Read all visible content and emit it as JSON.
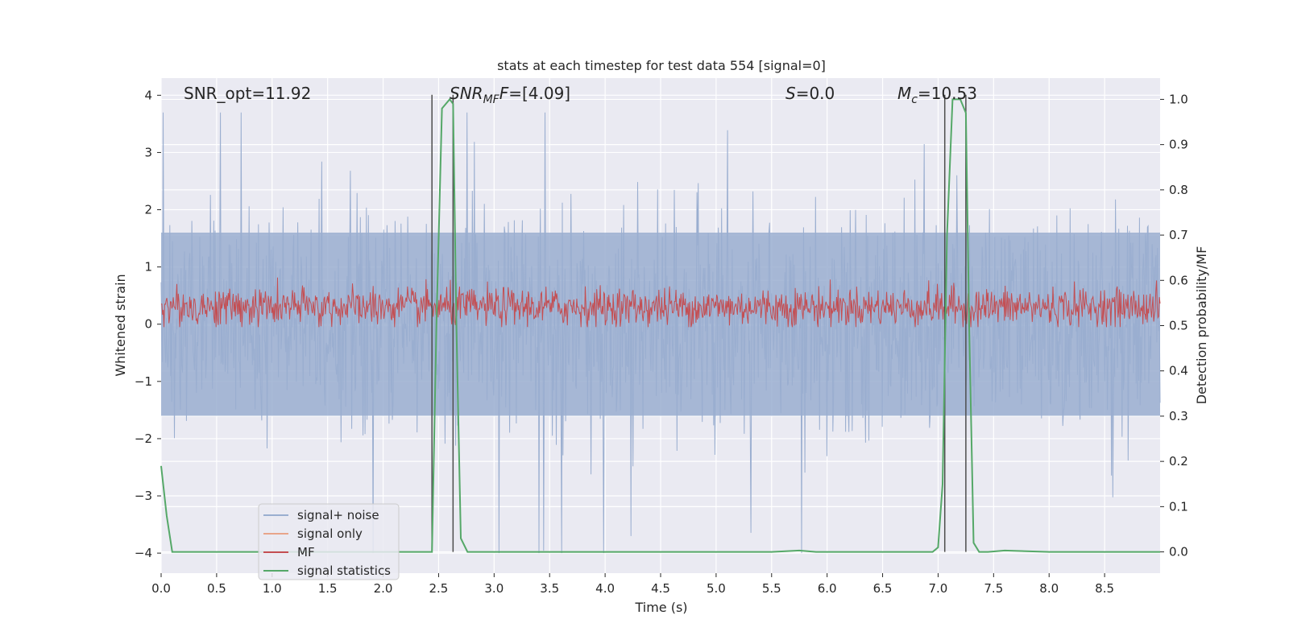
{
  "chart_data": {
    "type": "line",
    "title": "stats at each timestep for test data 554 [signal=0]",
    "xlabel": "Time (s)",
    "ylabel": "Whitened strain",
    "ylabel_right": "Detection probability/MF",
    "xlim": [
      0.0,
      9.0
    ],
    "ylim": [
      -4.35,
      4.3
    ],
    "ylim_right": [
      -0.047,
      1.047
    ],
    "xticks": [
      "0.0",
      "0.5",
      "1.0",
      "1.5",
      "2.0",
      "2.5",
      "3.0",
      "3.5",
      "4.0",
      "4.5",
      "5.0",
      "5.5",
      "6.0",
      "6.5",
      "7.0",
      "7.5",
      "8.0",
      "8.5"
    ],
    "yticks": [
      "4",
      "3",
      "2",
      "1",
      "0",
      "−1",
      "−2",
      "−3",
      "−4"
    ],
    "yticks_right": [
      "1.0",
      "0.9",
      "0.8",
      "0.7",
      "0.6",
      "0.5",
      "0.4",
      "0.3",
      "0.2",
      "0.1",
      "0.0"
    ],
    "grid": true,
    "legend_position": "lower-left",
    "annotations": {
      "snr_opt": "SNR_opt=11.92",
      "snr_mf_main": "SNR",
      "snr_mf_sub": "MF",
      "snr_mf_rest": "=[4.09]",
      "s_italic": "S",
      "s_rest": "=0.0",
      "mc_main": "M",
      "mc_sub": "c",
      "mc_rest": "=10.53"
    },
    "series": [
      {
        "name": "signal+ noise",
        "color": "#9aaed0",
        "amplitude_typical": 1.6,
        "amplitude_peak": 3.7
      },
      {
        "name": "signal only",
        "color": "#e8a58a",
        "values_note": ""
      },
      {
        "name": "MF",
        "color": "#c44e52",
        "center": 0.3,
        "amplitude": 0.45
      },
      {
        "name": "signal statistics",
        "color": "#55a868",
        "x": [
          0.0,
          0.05,
          0.1,
          0.15,
          2.44,
          2.48,
          2.53,
          2.6,
          2.63,
          2.66,
          2.7,
          2.76,
          5.5,
          5.75,
          5.9,
          6.95,
          7.0,
          7.04,
          7.08,
          7.13,
          7.2,
          7.25,
          7.28,
          7.32,
          7.37,
          7.45,
          7.6,
          8.0,
          9.0
        ],
        "y": [
          0.19,
          0.08,
          0.0,
          0.0,
          0.0,
          0.5,
          0.98,
          1.0,
          0.99,
          0.5,
          0.03,
          0.0,
          0.0,
          0.003,
          0.0,
          0.0,
          0.01,
          0.15,
          0.7,
          1.0,
          1.0,
          0.97,
          0.5,
          0.02,
          0.0,
          0.0,
          0.003,
          0.0,
          0.0
        ]
      }
    ],
    "vertical_markers_x": [
      2.44,
      2.63,
      7.06,
      7.25
    ],
    "colors": {
      "plot_background": "#eaeaf2",
      "grid": "#ffffff",
      "marker_line": "#4d4d4d",
      "legend_frame": "#cccccc"
    }
  }
}
